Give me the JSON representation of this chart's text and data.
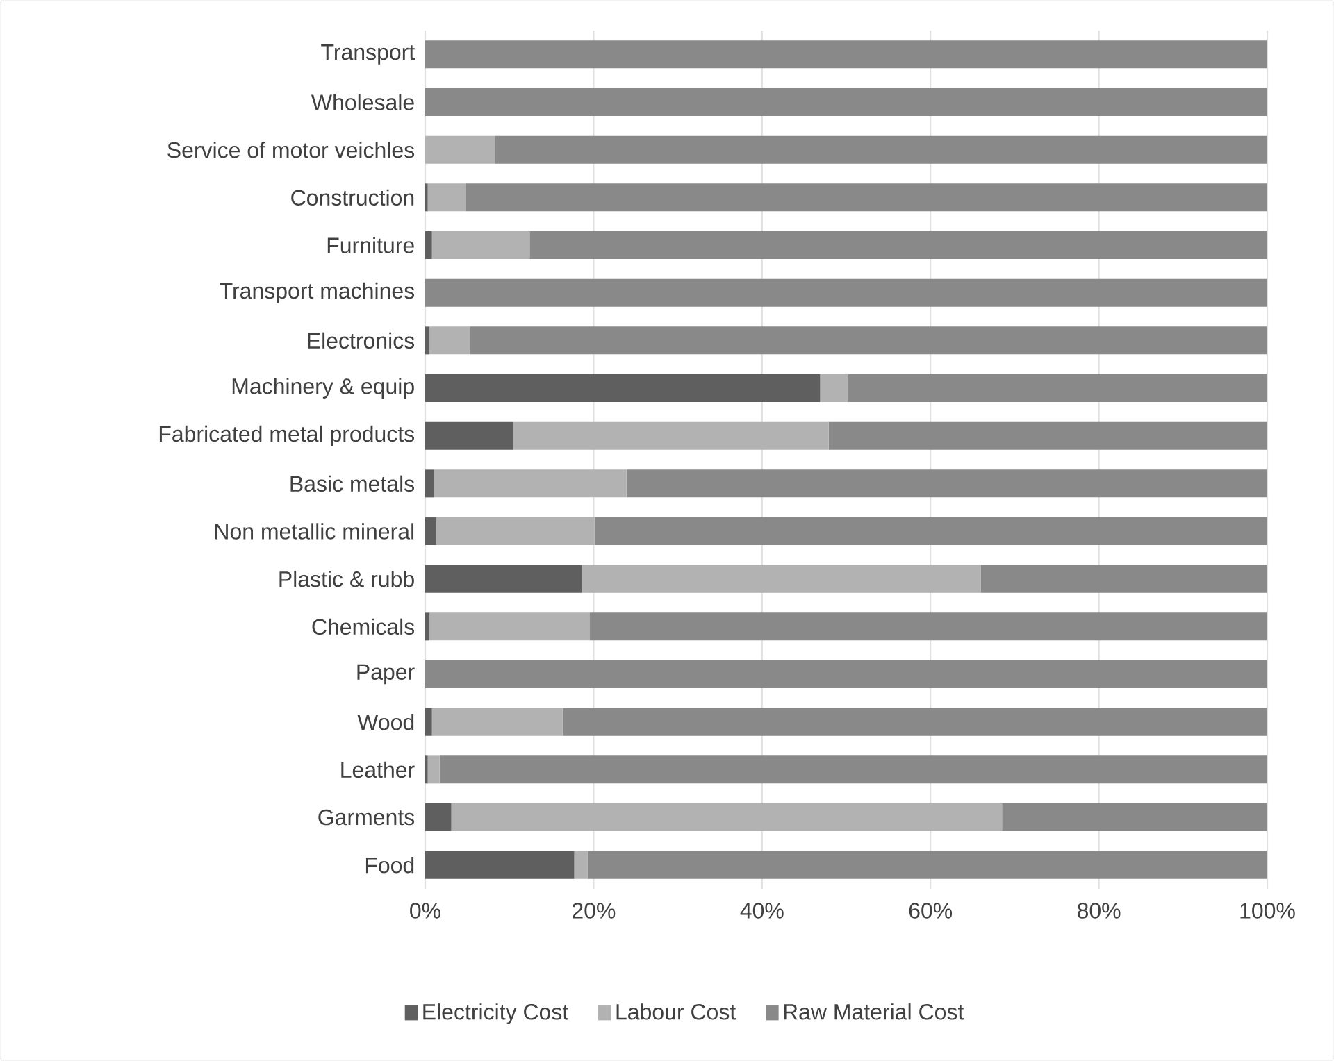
{
  "chart_data": {
    "type": "bar",
    "orientation": "horizontal",
    "stacked": true,
    "grid": "x",
    "legend": "bottom",
    "categories": [
      "Transport",
      "Wholesale",
      "Service of motor veichles",
      "Construction",
      "Furniture",
      "Transport machines",
      "Electronics",
      "Machinery & equip",
      "Fabricated metal products",
      "Basic metals",
      "Non metallic mineral",
      "Plastic & rubb",
      "Chemicals",
      "Paper",
      "Wood",
      "Leather",
      "Garments",
      "Food"
    ],
    "series": [
      {
        "name": "Electricity Cost",
        "color": "#5f5f5f",
        "values": [
          0,
          0,
          0,
          0.3,
          0.8,
          0,
          0.5,
          46.9,
          10.4,
          1.0,
          1.3,
          18.6,
          0.5,
          0,
          0.8,
          0.3,
          3.1,
          17.7
        ]
      },
      {
        "name": "Labour Cost",
        "color": "#b2b2b2",
        "values": [
          0,
          0,
          8.3,
          4.5,
          11.6,
          0,
          4.8,
          3.3,
          37.5,
          22.9,
          18.8,
          47.4,
          19.0,
          0,
          15.5,
          1.4,
          65.4,
          1.6
        ]
      },
      {
        "name": "Raw Material Cost",
        "color": "#898989",
        "values": [
          100,
          100,
          91.7,
          95.2,
          87.6,
          100,
          94.7,
          49.8,
          52.1,
          76.1,
          79.9,
          34.0,
          80.5,
          100,
          83.7,
          98.3,
          31.5,
          80.7
        ]
      }
    ],
    "xlim": [
      0,
      100
    ],
    "xticks": [
      {
        "value": 0,
        "label": "0%"
      },
      {
        "value": 20,
        "label": "20%"
      },
      {
        "value": 40,
        "label": "40%"
      },
      {
        "value": 60,
        "label": "60%"
      },
      {
        "value": 80,
        "label": "80%"
      },
      {
        "value": 100,
        "label": "100%"
      }
    ]
  }
}
